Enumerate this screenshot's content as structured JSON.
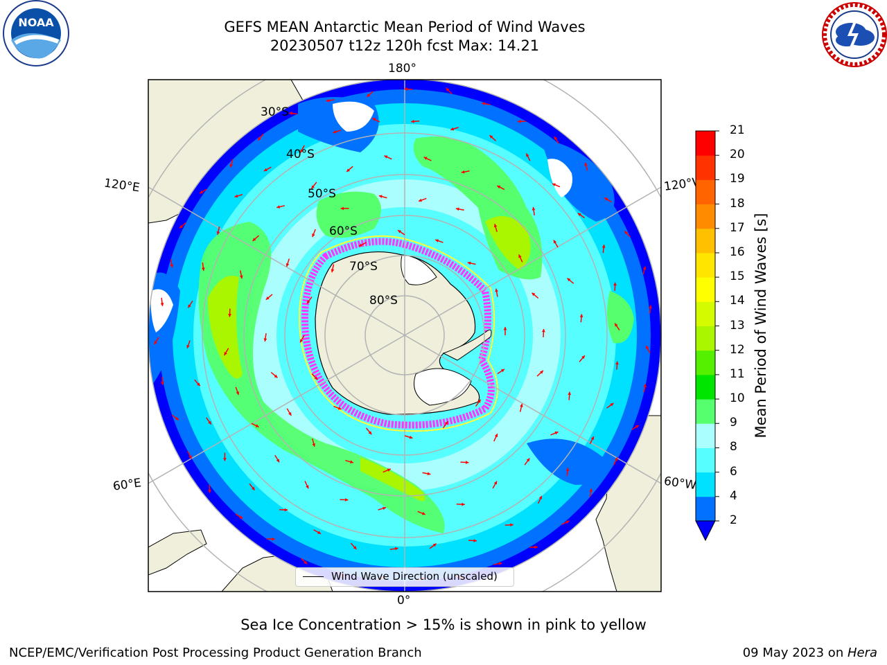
{
  "title": {
    "line1": "GEFS MEAN Antarctic Mean Period of Wind Waves",
    "line2": "20230507 t12z 120h fcst   Max: 14.21"
  },
  "logos": {
    "left": "noaa-logo",
    "left_text": "NOAA",
    "right": "national-weather-service-logo"
  },
  "map": {
    "projection": "south-polar-stereographic",
    "land_color": "#efefdb",
    "no_data_color": "#ffffff",
    "sea_ice_colors": [
      "#ff33ff",
      "#ffff33"
    ],
    "vector_color": "#ff0000",
    "longitude_labels": {
      "top": "180°",
      "bottom": "0°",
      "upper_left": "120°E",
      "upper_right": "120°W",
      "lower_left": "60°E",
      "lower_right": "60°W"
    },
    "latitude_labels": [
      "30°S",
      "40°S",
      "50°S",
      "60°S",
      "70°S",
      "80°S"
    ],
    "legend": "Wind Wave Direction (unscaled)"
  },
  "colorbar": {
    "title": "Mean Period of Wind Waves [s]",
    "ticks": [
      "2",
      "4",
      "6",
      "8",
      "9",
      "10",
      "11",
      "12",
      "13",
      "14",
      "15",
      "16",
      "17",
      "18",
      "19",
      "20",
      "21"
    ],
    "colors": [
      "#0072ff",
      "#00e1ff",
      "#57feff",
      "#aafffe",
      "#55ff6e",
      "#00e500",
      "#55f000",
      "#aaf500",
      "#d4fb00",
      "#ffff00",
      "#ffe600",
      "#ffc000",
      "#ff8c00",
      "#ff6400",
      "#ff3200",
      "#ff0000"
    ],
    "under_color": "#0000ff"
  },
  "notes": {
    "ice": "Sea Ice Concentration > 15% is shown in pink to yellow"
  },
  "footer": {
    "left": "NCEP/EMC/Verification Post Processing Product Generation Branch",
    "date": "09 May 2023 on ",
    "host": "Hera"
  }
}
